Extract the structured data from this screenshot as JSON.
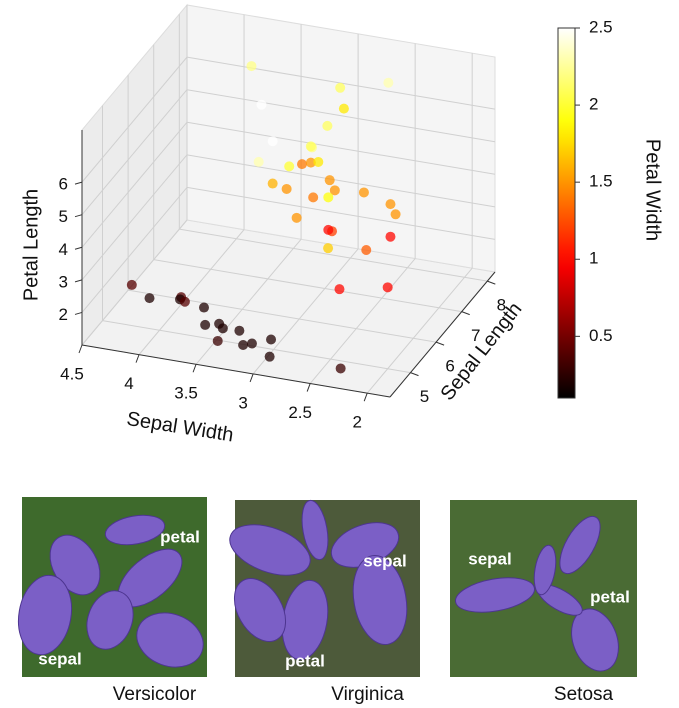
{
  "chart_data": {
    "type": "scatter3d",
    "xlabel": "Sepal Width",
    "ylabel": "Sepal Length",
    "zlabel": "Petal Length",
    "clabel": "Petal Width",
    "xlim": [
      1.8,
      4.5
    ],
    "xinvert": true,
    "xticks": [
      2,
      2.5,
      3,
      3.5,
      4,
      4.5
    ],
    "ylim": [
      4.2,
      8.3
    ],
    "yticks": [
      5,
      6,
      7,
      8
    ],
    "zlim": [
      1,
      7.6
    ],
    "zticks": [
      2,
      3,
      4,
      5,
      6
    ],
    "clim": [
      0.1,
      2.5
    ],
    "cticks": [
      0.5,
      1,
      1.5,
      2,
      2.5
    ],
    "colormap": "hot",
    "grid": true,
    "x": [
      3.5,
      3.0,
      3.2,
      3.1,
      3.6,
      3.9,
      3.4,
      2.9,
      3.7,
      4.0,
      4.4,
      3.8,
      2.3,
      4.2,
      3.3,
      3.4,
      3.2,
      3.2,
      3.1,
      2.3,
      2.8,
      3.3,
      2.4,
      2.0,
      2.2,
      2.9,
      2.2,
      3.0,
      2.5,
      2.6,
      2.7,
      3.3,
      2.7,
      3.0,
      2.9,
      3.0,
      3.0,
      2.5,
      2.9,
      3.6,
      3.2,
      2.6,
      2.2,
      3.8,
      2.8,
      3.1,
      3.4
    ],
    "y": [
      5.1,
      4.9,
      4.7,
      4.6,
      5.0,
      5.4,
      4.6,
      4.4,
      5.4,
      5.8,
      5.7,
      5.1,
      4.5,
      5.5,
      5.0,
      4.8,
      7.0,
      6.4,
      6.9,
      5.5,
      6.5,
      6.3,
      4.9,
      5.0,
      6.0,
      6.1,
      6.2,
      5.9,
      6.3,
      5.5,
      5.8,
      6.3,
      5.8,
      7.1,
      6.3,
      6.5,
      7.6,
      4.9,
      7.3,
      7.2,
      6.5,
      7.7,
      6.0,
      7.7,
      6.3,
      6.9,
      6.2
    ],
    "z": [
      1.4,
      1.4,
      1.3,
      1.5,
      1.4,
      1.7,
      1.4,
      1.4,
      1.5,
      1.2,
      1.5,
      1.9,
      1.3,
      1.4,
      1.4,
      1.6,
      4.7,
      4.5,
      4.9,
      4.0,
      4.6,
      4.7,
      3.3,
      3.5,
      4.0,
      4.7,
      4.5,
      4.2,
      4.9,
      4.4,
      4.1,
      6.0,
      5.1,
      5.9,
      5.6,
      5.8,
      6.6,
      4.5,
      6.3,
      6.1,
      5.1,
      6.9,
      5.0,
      6.7,
      5.1,
      5.4,
      5.4
    ],
    "values": [
      0.2,
      0.2,
      0.2,
      0.2,
      0.2,
      0.4,
      0.3,
      0.2,
      0.2,
      0.2,
      0.4,
      0.4,
      0.3,
      0.2,
      0.2,
      0.2,
      1.4,
      1.5,
      1.5,
      1.3,
      1.5,
      1.6,
      1.0,
      1.0,
      1.0,
      1.4,
      1.5,
      1.5,
      1.5,
      1.2,
      1.0,
      2.5,
      1.9,
      2.1,
      1.8,
      2.2,
      2.1,
      1.7,
      1.8,
      2.5,
      2.0,
      2.3,
      1.5,
      2.2,
      1.5,
      2.1,
      2.3
    ]
  },
  "images": [
    {
      "caption": "Versicolor",
      "labels": [
        "petal",
        "sepal"
      ]
    },
    {
      "caption": "Virginica",
      "labels": [
        "sepal",
        "petal"
      ]
    },
    {
      "caption": "Setosa",
      "labels": [
        "sepal",
        "petal"
      ]
    }
  ]
}
